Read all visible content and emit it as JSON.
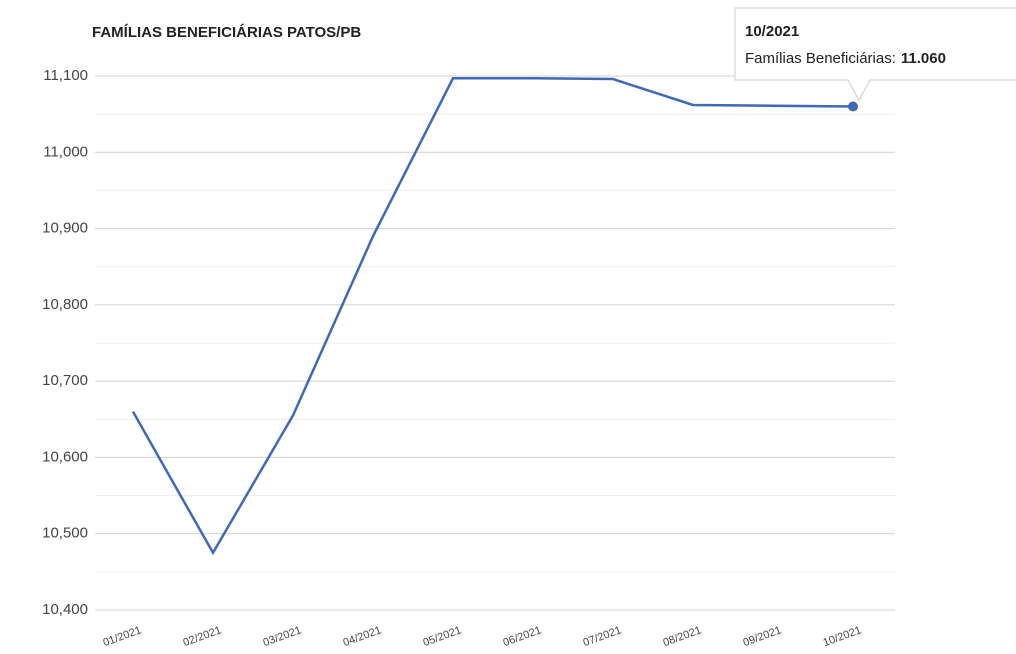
{
  "chart_data": {
    "type": "line",
    "title": "FAMÍLIAS BENEFICIÁRIAS PATOS/PB",
    "categories": [
      "01/2021",
      "02/2021",
      "03/2021",
      "04/2021",
      "05/2021",
      "06/2021",
      "07/2021",
      "08/2021",
      "09/2021",
      "10/2021"
    ],
    "values": [
      10660,
      10475,
      10655,
      10890,
      11097,
      11097,
      11096,
      11062,
      11061,
      11060
    ],
    "value_labels": [
      null,
      null,
      null,
      null,
      null,
      null,
      null,
      null,
      null,
      "11.060"
    ],
    "color": "#3f68b5",
    "ylim": [
      10400,
      11100
    ],
    "yticks": [
      {
        "value": 10400,
        "label": "10,400"
      },
      {
        "value": 10500,
        "label": "10,500"
      },
      {
        "value": 10600,
        "label": "10,600"
      },
      {
        "value": 10700,
        "label": "10,700"
      },
      {
        "value": 10800,
        "label": "10,800"
      },
      {
        "value": 10900,
        "label": "10,900"
      },
      {
        "value": 11000,
        "label": "11,000"
      },
      {
        "value": 11100,
        "label": "11,100"
      }
    ],
    "minor_yticks": [
      10450,
      10550,
      10650,
      10750,
      10850,
      10950,
      11050
    ],
    "grid": true,
    "tooltip": {
      "index": 9,
      "label": "Famílias Beneficiárias:"
    }
  }
}
